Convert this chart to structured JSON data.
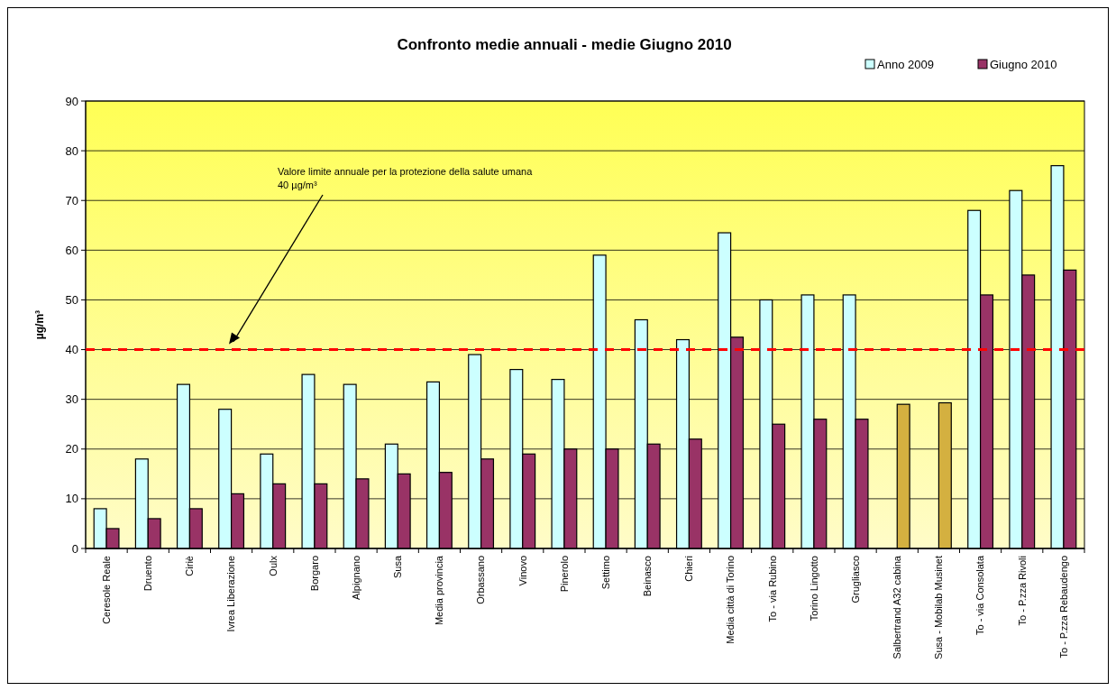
{
  "chart_data": {
    "type": "bar",
    "title": "Confronto medie annuali - medie Giugno 2010",
    "ylabel": "µg/m³",
    "categories": [
      "Ceresole Reale",
      "Druento",
      "Ciriè",
      "Ivrea Liberazione",
      "Oulx",
      "Borgaro",
      "Alpignano",
      "Susa",
      "Media provincia",
      "Orbassano",
      "Vinovo",
      "Pinerolo",
      "Settimo",
      "Beinasco",
      "Chieri",
      "Media città di Torino",
      "To - via Rubino",
      "Torino Lingotto",
      "Grugliasco",
      "Salbertrand A32 cabina",
      "Susa - Mobilab Musinet",
      "To - via Consolata",
      "To - P.zza Rivoli",
      "To - P.zza Rebaudengo"
    ],
    "series": [
      {
        "name": "Anno 2009",
        "color": "#ccffff",
        "values": [
          8,
          18,
          33,
          28,
          19,
          35,
          33,
          21,
          33.5,
          39,
          36,
          34,
          59,
          46,
          42,
          63.5,
          50,
          51,
          51,
          null,
          null,
          68,
          72,
          77
        ]
      },
      {
        "name": "Giugno 2010",
        "color": "#993366",
        "colors": [
          "#993366",
          "#993366",
          "#993366",
          "#993366",
          "#993366",
          "#993366",
          "#993366",
          "#993366",
          "#993366",
          "#993366",
          "#993366",
          "#993366",
          "#993366",
          "#993366",
          "#993366",
          "#993366",
          "#993366",
          "#993366",
          "#993366",
          "#d4b040",
          "#d4b040",
          "#993366",
          "#993366",
          "#993366"
        ],
        "values": [
          4,
          6,
          8,
          11,
          13,
          13,
          14,
          15,
          15.3,
          18,
          19,
          20,
          20,
          21,
          22,
          42.5,
          25,
          26,
          26,
          29,
          29.3,
          51,
          55,
          56
        ]
      }
    ],
    "ylim": [
      0,
      90
    ],
    "yticks": [
      0,
      10,
      20,
      30,
      40,
      50,
      60,
      70,
      80,
      90
    ],
    "grid": "y",
    "legend": "top right",
    "ref_lines": [
      {
        "axis": "y",
        "value": 40,
        "label": "Valore limite annuale per la protezione della salute umana 40 µg/m³",
        "color": "#ff0000",
        "line_style": "dashed"
      }
    ]
  }
}
